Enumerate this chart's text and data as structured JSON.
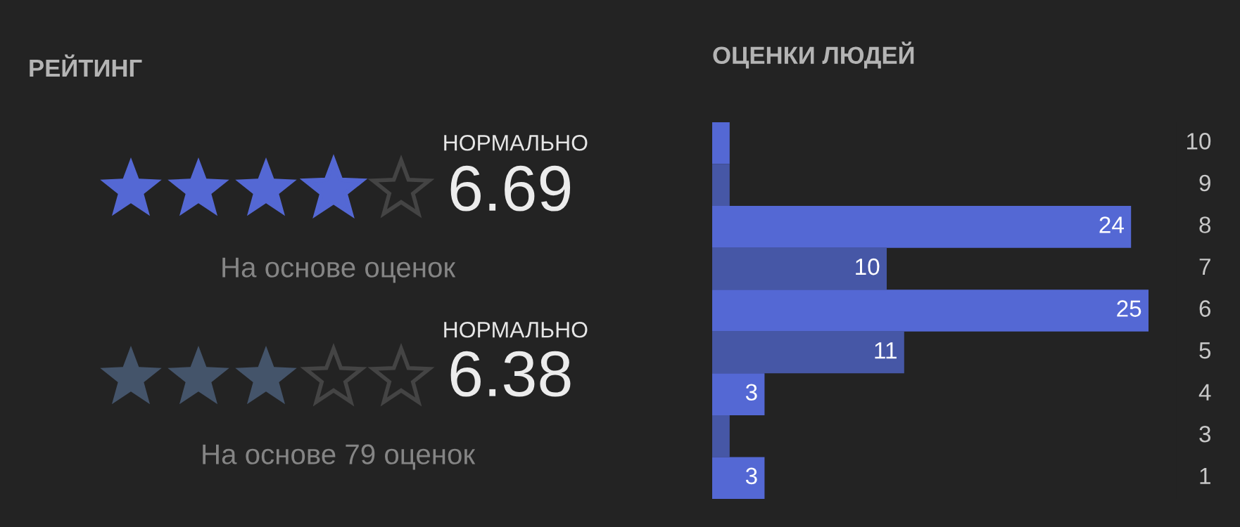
{
  "chart_data": [
    {
      "type": "other",
      "title": "РЕЙТИНГ",
      "annotations": [
        "НОРМАЛЬНО",
        "6.69",
        "На основе оценок",
        "НОРМАЛЬНО",
        "6.38",
        "На основе 79 оценок"
      ]
    },
    {
      "type": "bar",
      "orientation": "horizontal",
      "title": "ОЦЕНКИ ЛЮДЕЙ",
      "categories": [
        "10",
        "9",
        "8",
        "7",
        "6",
        "5",
        "4",
        "3",
        "1"
      ],
      "values": [
        1,
        1,
        24,
        10,
        25,
        11,
        3,
        1,
        3
      ],
      "value_labels": [
        null,
        null,
        "24",
        "10",
        "25",
        "11",
        "3",
        null,
        "3"
      ],
      "colors": [
        "#5468d4",
        "#4657a6",
        "#5468d4",
        "#4657a6",
        "#5468d4",
        "#4657a6",
        "#5468d4",
        "#4657a6",
        "#5468d4"
      ]
    }
  ]
}
